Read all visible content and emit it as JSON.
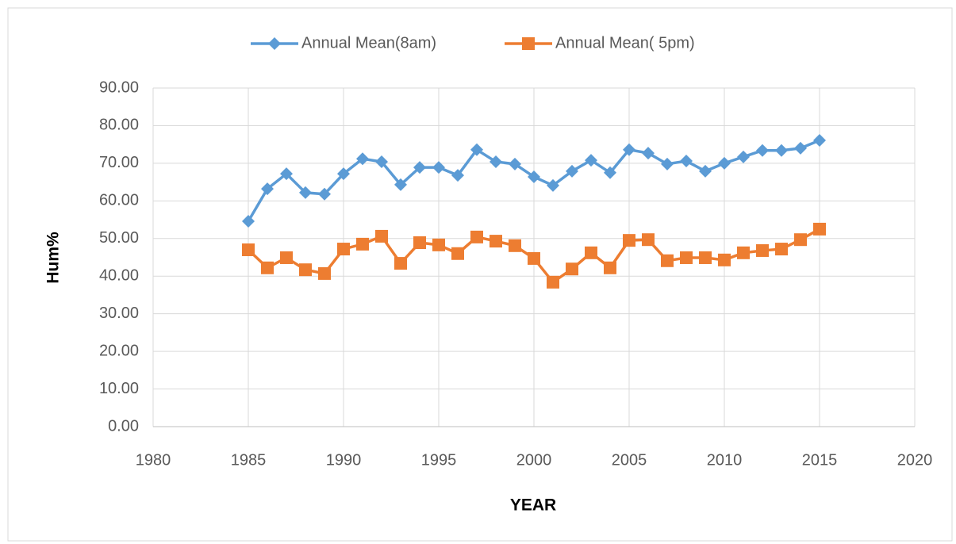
{
  "chart_data": {
    "type": "line",
    "x_label": "YEAR",
    "y_label": "Hum%",
    "x": [
      1985,
      1986,
      1987,
      1988,
      1989,
      1990,
      1991,
      1992,
      1993,
      1994,
      1995,
      1996,
      1997,
      1998,
      1999,
      2000,
      2001,
      2002,
      2003,
      2004,
      2005,
      2006,
      2007,
      2008,
      2009,
      2010,
      2011,
      2012,
      2013,
      2014,
      2015
    ],
    "series": [
      {
        "name": "Annual Mean(8am)",
        "color": "#5b9bd5",
        "marker": "diamond",
        "values": [
          54.6,
          63.2,
          67.2,
          62.2,
          61.8,
          67.2,
          71.2,
          70.4,
          64.3,
          68.9,
          68.9,
          66.8,
          73.6,
          70.4,
          69.8,
          66.4,
          64.1,
          67.9,
          70.8,
          67.5,
          73.6,
          72.7,
          69.8,
          70.6,
          67.9,
          70.0,
          71.7,
          73.4,
          73.4,
          74.0,
          76.1
        ]
      },
      {
        "name": "Annual Mean( 5pm)",
        "color": "#ed7d31",
        "marker": "square",
        "values": [
          47.0,
          42.2,
          44.9,
          41.7,
          40.7,
          47.2,
          48.5,
          50.6,
          43.4,
          48.9,
          48.3,
          46.0,
          50.4,
          49.3,
          48.1,
          44.7,
          38.4,
          41.9,
          46.2,
          42.2,
          49.5,
          49.7,
          44.1,
          44.9,
          44.9,
          44.3,
          46.2,
          46.8,
          47.2,
          49.7,
          52.5
        ]
      }
    ],
    "xlim": [
      1980,
      2020
    ],
    "xticks": [
      1980,
      1985,
      1990,
      1995,
      2000,
      2005,
      2010,
      2015,
      2020
    ],
    "ylim": [
      0,
      90
    ],
    "yticks": [
      {
        "value": 0,
        "label": "0.00"
      },
      {
        "value": 10,
        "label": "10.00"
      },
      {
        "value": 20,
        "label": "20.00"
      },
      {
        "value": 30,
        "label": "30.00"
      },
      {
        "value": 40,
        "label": "40.00"
      },
      {
        "value": 50,
        "label": "50.00"
      },
      {
        "value": 60,
        "label": "60.00"
      },
      {
        "value": 70,
        "label": "70.00"
      },
      {
        "value": 80,
        "label": "80.00"
      },
      {
        "value": 90,
        "label": "90.00"
      }
    ],
    "grid": true,
    "legend": "top"
  }
}
